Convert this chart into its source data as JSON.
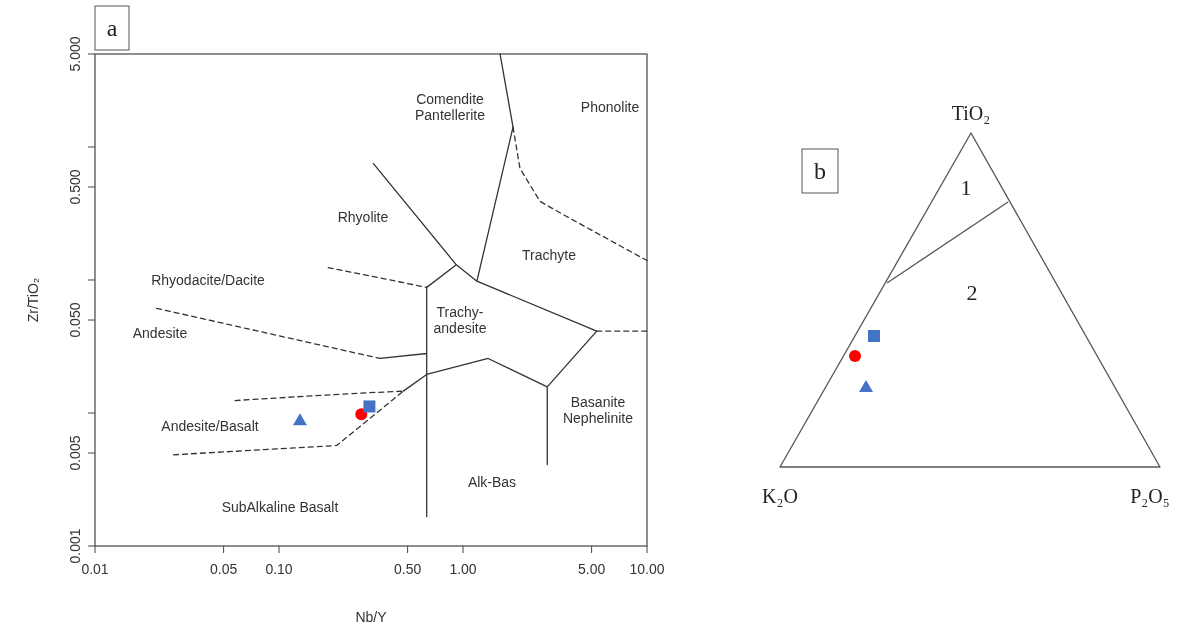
{
  "chart_data": [
    {
      "type": "scatter",
      "title": "a",
      "xlabel": "Nb/Y",
      "ylabel": "Zr/TiO₂",
      "log": "xy",
      "grid": false,
      "xlim": [
        0.01,
        10
      ],
      "xticks": [
        0.01,
        0.05,
        {
          "value": 0.1,
          "label": "0.10"
        },
        {
          "value": 0.5,
          "label": "0.50"
        },
        {
          "value": 1,
          "label": "1.00"
        },
        {
          "value": 5,
          "label": "5.00"
        },
        {
          "value": 10,
          "label": "10.00"
        }
      ],
      "ylim": [
        0.001,
        5
      ],
      "yticks": [
        0.001,
        0.005,
        {
          "value": 0.01,
          "label": null
        },
        {
          "value": 0.05,
          "label": "0.050"
        },
        {
          "value": 0.1,
          "label": null
        },
        {
          "value": 0.5,
          "label": "0.500"
        },
        {
          "value": 1,
          "label": null
        },
        {
          "value": 5,
          "label": "5.000"
        }
      ],
      "series": [
        {
          "type": "line",
          "line_style": "solid",
          "color": "#333333",
          "x": [
            1.59,
            1.87,
            1.19,
            5.33,
            2.87,
            1.37,
            0.635,
            null,
            0.326,
            0.92,
            1.19,
            null,
            0.92,
            0.635,
            0.635,
            null,
            2.87,
            2.87,
            null,
            0.354,
            0.635,
            null,
            0.474,
            0.635
          ],
          "values": [
            5,
            1.41,
            0.098,
            0.0413,
            0.0157,
            0.0257,
            0.0195,
            null,
            0.75,
            0.13,
            0.098,
            null,
            0.13,
            0.088,
            0.00166,
            null,
            0.0157,
            0.0041,
            null,
            0.0257,
            0.028,
            null,
            0.0146,
            0.0195
          ]
        },
        {
          "type": "line",
          "line_style": "dashed",
          "color": "#333333",
          "x": [
            1.87,
            2.04,
            2.62,
            3.66,
            10,
            null,
            0.185,
            0.635,
            null,
            5.33,
            10,
            null,
            0.0216,
            0.354,
            null,
            0.0577,
            0.11,
            0.249,
            0.474,
            null,
            0.0267,
            0.065,
            0.206,
            0.474
          ],
          "values": [
            1.41,
            0.69,
            0.39,
            0.3,
            0.14,
            null,
            0.124,
            0.088,
            null,
            0.0413,
            0.0413,
            null,
            0.0612,
            0.0257,
            null,
            0.0124,
            0.0131,
            0.014,
            0.0146,
            null,
            0.00485,
            0.0052,
            0.0057,
            0.0146
          ]
        },
        {
          "type": "scatter",
          "marker": "triangle",
          "color": "#4472c4",
          "x": [
            0.13
          ],
          "values": [
            0.0088
          ]
        },
        {
          "type": "scatter",
          "marker": "circle",
          "color": "#ff0000",
          "x": [
            0.28
          ],
          "values": [
            0.0098
          ]
        },
        {
          "type": "scatter",
          "marker": "square",
          "color": "#4472c4",
          "x": [
            0.31
          ],
          "values": [
            0.0112
          ]
        }
      ],
      "annotations": [
        "Comendite\nPantellerite",
        "Phonolite",
        "Rhyolite",
        "Trachyte",
        "Rhyodacite/Dacite",
        "Trachy-\nandesite",
        "Andesite",
        "Andesite/Basalt",
        "Basanite\nNephelinite",
        "Alk-Bas",
        "SubAlkaline Basalt"
      ]
    },
    {
      "type": "other",
      "title": "b",
      "annotations": [
        "TiO₂",
        "K₂O",
        "P₂O₅",
        "1",
        "2"
      ]
    }
  ]
}
